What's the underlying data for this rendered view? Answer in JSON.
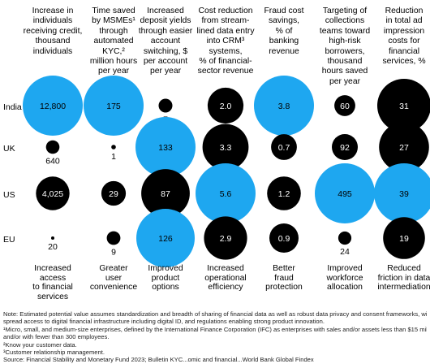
{
  "chart_data": {
    "type": "bubble",
    "columns": [
      {
        "header": "Increase in individuals receiving credit, thousand individuals",
        "header_lines": [
          "Increase in",
          "individuals",
          "receiving credit,",
          "thousand",
          "individuals"
        ],
        "footer_lines": [
          "Increased",
          "access",
          "to financial",
          "services"
        ],
        "color": "#000000",
        "highlight": "India"
      },
      {
        "header": "Time saved by MSMEs through automated KYC, million hours per year",
        "header_lines": [
          "Time saved",
          "by MSMEs¹",
          "through",
          "automated",
          "KYC,²",
          "million hours",
          "per year"
        ],
        "footer_lines": [
          "Greater",
          "user",
          "convenience"
        ],
        "highlight": "India"
      },
      {
        "header": "Increased deposit yields through easier account switching, $ per account per year",
        "header_lines": [
          "Increased",
          "deposit yields",
          "through easier",
          "account",
          "switching, $",
          "per account",
          "per year"
        ],
        "footer_lines": [
          "Improved",
          "product",
          "options"
        ],
        "highlight": "UK,EU"
      },
      {
        "header": "Cost reduction from streamlined data entry into CRM systems, % of financial-sector revenue",
        "header_lines": [
          "Cost reduction",
          "from stream-",
          "lined data entry",
          "into CRM³",
          "systems,",
          "% of financial-",
          "sector revenue"
        ],
        "footer_lines": [
          "Increased",
          "operational",
          "efficiency"
        ],
        "highlight": "US"
      },
      {
        "header": "Fraud cost savings, % of banking revenue",
        "header_lines": [
          "Fraud cost",
          "savings,",
          "% of",
          "banking",
          "revenue"
        ],
        "footer_lines": [
          "Better",
          "fraud",
          "protection"
        ],
        "highlight": "India"
      },
      {
        "header": "Targeting of collections teams toward high-risk borrowers, thousand hours saved per year",
        "header_lines": [
          "Targeting of",
          "collections",
          "teams toward",
          "high-risk",
          "borrowers,",
          "thousand",
          "hours saved",
          "per year"
        ],
        "footer_lines": [
          "Improved",
          "workforce",
          "allocation"
        ],
        "highlight": "US"
      },
      {
        "header": "Reduction in total ad impression costs for financial services, %",
        "header_lines": [
          "Reduction",
          "in total ad",
          "impression",
          "costs for",
          "financial",
          "services, %"
        ],
        "footer_lines": [
          "Reduced",
          "friction in data",
          "intermediation"
        ],
        "highlight": "US"
      }
    ],
    "rows": [
      "India",
      "UK",
      "US",
      "EU"
    ],
    "values": [
      [
        "12,800",
        "175",
        "7",
        "2.0",
        "3.8",
        "60",
        "31"
      ],
      [
        "640",
        "1",
        "133",
        "3.3",
        "0.7",
        "92",
        "27"
      ],
      [
        "4,025",
        "29",
        "87",
        "5.6",
        "1.2",
        "495",
        "39"
      ],
      [
        "20",
        "9",
        "126",
        "2.9",
        "0.9",
        "24",
        "19"
      ]
    ],
    "numeric_values": [
      [
        12800,
        175,
        7,
        2.0,
        3.8,
        60,
        31
      ],
      [
        640,
        1,
        133,
        3.3,
        0.7,
        92,
        27
      ],
      [
        4025,
        29,
        87,
        5.6,
        1.2,
        495,
        39
      ],
      [
        20,
        9,
        126,
        2.9,
        0.9,
        24,
        19
      ]
    ],
    "colors": {
      "highlight": "#1EA7F0",
      "base": "#000000",
      "label_on_dark": "#ffffff",
      "label_on_light": "#000000"
    }
  },
  "notes": [
    "Note: Estimated potential value assumes standardization and breadth of sharing of financial data as well as robust data privacy and consent frameworks, wide-",
    "spread access to digital financial infrastructure including digital ID, and regulations enabling strong product innovation.",
    "¹Micro, small, and medium-size enterprises, defined by the International Finance Corporation (IFC) as enterprises with sales and/or assets less than $15 million",
    "and/or with fewer than 300 employees.",
    "²Know your customer data.",
    "³Customer relationship management.",
    "Source: Financial Stability and Monetary Fund 2023; Bulletin KYC...omic and financial...World Bank Global Findex"
  ]
}
